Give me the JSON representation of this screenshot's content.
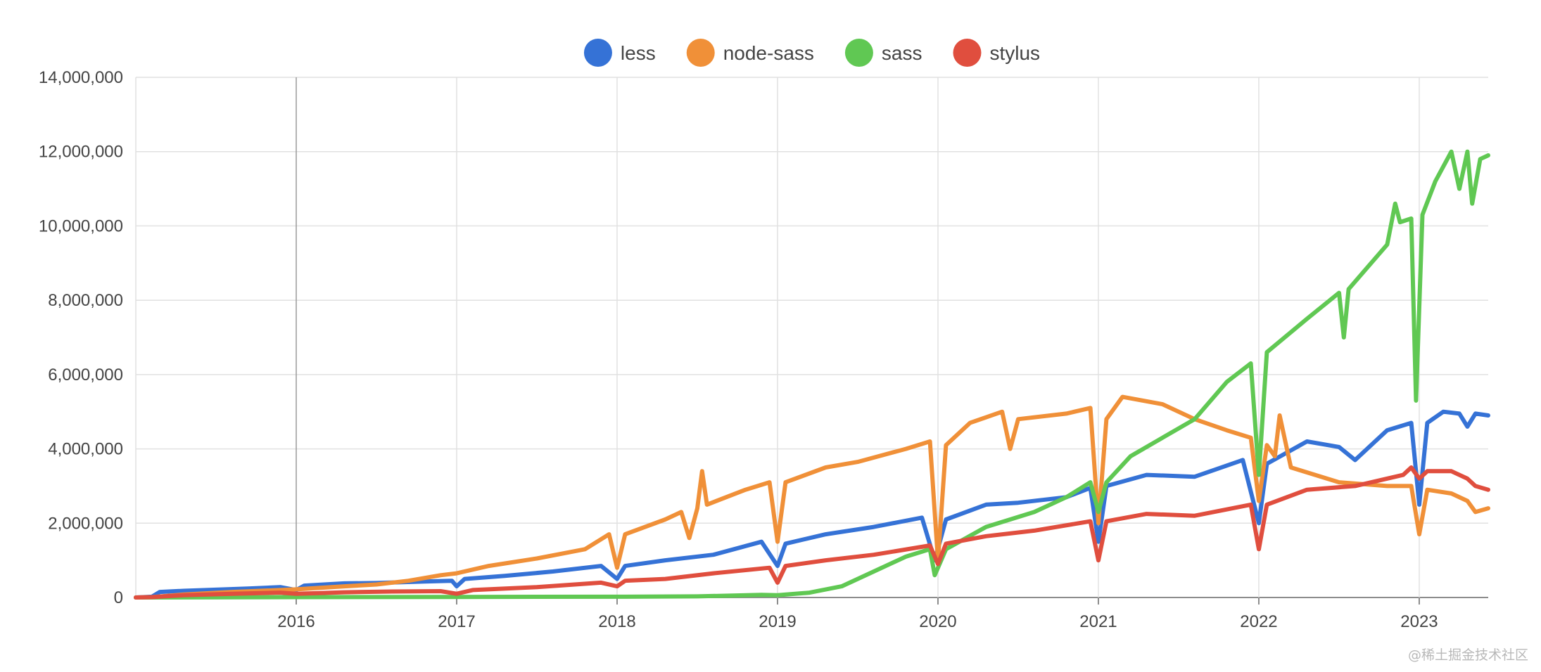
{
  "chart_data": {
    "type": "line",
    "title": "",
    "xlabel": "",
    "ylabel": "",
    "xlim": [
      2015.0,
      2023.43
    ],
    "ylim": [
      0,
      14000000
    ],
    "x_ticks": [
      2016,
      2017,
      2018,
      2019,
      2020,
      2021,
      2022,
      2023
    ],
    "x_tick_labels": [
      "2016",
      "2017",
      "2018",
      "2019",
      "2020",
      "2021",
      "2022",
      "2023"
    ],
    "y_ticks": [
      0,
      2000000,
      4000000,
      6000000,
      8000000,
      10000000,
      12000000,
      14000000
    ],
    "y_tick_labels": [
      "0",
      "2,000,000",
      "4,000,000",
      "6,000,000",
      "8,000,000",
      "10,000,000",
      "12,000,000",
      "14,000,000"
    ],
    "grid": true,
    "legend_position": "top-center",
    "series": [
      {
        "name": "less",
        "color": "#3572d6",
        "points": [
          [
            2015.0,
            0
          ],
          [
            2015.1,
            20000
          ],
          [
            2015.15,
            150000
          ],
          [
            2015.3,
            180000
          ],
          [
            2015.5,
            210000
          ],
          [
            2015.7,
            240000
          ],
          [
            2015.9,
            280000
          ],
          [
            2016.0,
            200000
          ],
          [
            2016.05,
            320000
          ],
          [
            2016.3,
            380000
          ],
          [
            2016.5,
            390000
          ],
          [
            2016.8,
            430000
          ],
          [
            2016.97,
            450000
          ],
          [
            2017.0,
            300000
          ],
          [
            2017.05,
            500000
          ],
          [
            2017.3,
            580000
          ],
          [
            2017.6,
            700000
          ],
          [
            2017.9,
            850000
          ],
          [
            2018.0,
            500000
          ],
          [
            2018.05,
            850000
          ],
          [
            2018.3,
            1000000
          ],
          [
            2018.6,
            1150000
          ],
          [
            2018.9,
            1500000
          ],
          [
            2019.0,
            850000
          ],
          [
            2019.05,
            1450000
          ],
          [
            2019.3,
            1700000
          ],
          [
            2019.6,
            1900000
          ],
          [
            2019.9,
            2150000
          ],
          [
            2019.98,
            1000000
          ],
          [
            2020.05,
            2100000
          ],
          [
            2020.3,
            2500000
          ],
          [
            2020.5,
            2550000
          ],
          [
            2020.8,
            2700000
          ],
          [
            2020.95,
            2950000
          ],
          [
            2021.0,
            1500000
          ],
          [
            2021.05,
            3000000
          ],
          [
            2021.3,
            3300000
          ],
          [
            2021.6,
            3250000
          ],
          [
            2021.9,
            3700000
          ],
          [
            2022.0,
            2000000
          ],
          [
            2022.05,
            3600000
          ],
          [
            2022.3,
            4200000
          ],
          [
            2022.5,
            4050000
          ],
          [
            2022.6,
            3700000
          ],
          [
            2022.8,
            4500000
          ],
          [
            2022.95,
            4700000
          ],
          [
            2023.0,
            2500000
          ],
          [
            2023.05,
            4700000
          ],
          [
            2023.15,
            5000000
          ],
          [
            2023.25,
            4950000
          ],
          [
            2023.3,
            4600000
          ],
          [
            2023.35,
            4950000
          ],
          [
            2023.43,
            4900000
          ]
        ]
      },
      {
        "name": "node-sass",
        "color": "#f09038",
        "points": [
          [
            2015.0,
            0
          ],
          [
            2015.1,
            10000
          ],
          [
            2015.3,
            80000
          ],
          [
            2015.6,
            150000
          ],
          [
            2015.9,
            200000
          ],
          [
            2016.0,
            220000
          ],
          [
            2016.3,
            300000
          ],
          [
            2016.5,
            350000
          ],
          [
            2016.7,
            450000
          ],
          [
            2016.9,
            600000
          ],
          [
            2017.0,
            650000
          ],
          [
            2017.2,
            850000
          ],
          [
            2017.5,
            1050000
          ],
          [
            2017.8,
            1300000
          ],
          [
            2017.95,
            1700000
          ],
          [
            2018.0,
            800000
          ],
          [
            2018.05,
            1700000
          ],
          [
            2018.3,
            2100000
          ],
          [
            2018.4,
            2300000
          ],
          [
            2018.45,
            1600000
          ],
          [
            2018.5,
            2400000
          ],
          [
            2018.53,
            3400000
          ],
          [
            2018.56,
            2500000
          ],
          [
            2018.8,
            2900000
          ],
          [
            2018.95,
            3100000
          ],
          [
            2019.0,
            1500000
          ],
          [
            2019.05,
            3100000
          ],
          [
            2019.3,
            3500000
          ],
          [
            2019.5,
            3650000
          ],
          [
            2019.8,
            4000000
          ],
          [
            2019.95,
            4200000
          ],
          [
            2020.0,
            1000000
          ],
          [
            2020.05,
            4100000
          ],
          [
            2020.2,
            4700000
          ],
          [
            2020.4,
            5000000
          ],
          [
            2020.45,
            4000000
          ],
          [
            2020.5,
            4800000
          ],
          [
            2020.8,
            4950000
          ],
          [
            2020.95,
            5100000
          ],
          [
            2021.0,
            2000000
          ],
          [
            2021.05,
            4800000
          ],
          [
            2021.15,
            5400000
          ],
          [
            2021.4,
            5200000
          ],
          [
            2021.6,
            4800000
          ],
          [
            2021.8,
            4500000
          ],
          [
            2021.95,
            4300000
          ],
          [
            2022.0,
            2600000
          ],
          [
            2022.05,
            4100000
          ],
          [
            2022.1,
            3800000
          ],
          [
            2022.13,
            4900000
          ],
          [
            2022.2,
            3500000
          ],
          [
            2022.5,
            3100000
          ],
          [
            2022.8,
            3000000
          ],
          [
            2022.95,
            3000000
          ],
          [
            2023.0,
            1700000
          ],
          [
            2023.05,
            2900000
          ],
          [
            2023.2,
            2800000
          ],
          [
            2023.3,
            2600000
          ],
          [
            2023.35,
            2300000
          ],
          [
            2023.43,
            2400000
          ]
        ]
      },
      {
        "name": "sass",
        "color": "#60c853",
        "points": [
          [
            2015.0,
            0
          ],
          [
            2016.0,
            10000
          ],
          [
            2017.0,
            15000
          ],
          [
            2018.0,
            20000
          ],
          [
            2018.5,
            30000
          ],
          [
            2018.9,
            70000
          ],
          [
            2019.0,
            60000
          ],
          [
            2019.2,
            130000
          ],
          [
            2019.4,
            300000
          ],
          [
            2019.6,
            700000
          ],
          [
            2019.8,
            1100000
          ],
          [
            2019.95,
            1300000
          ],
          [
            2019.98,
            600000
          ],
          [
            2020.05,
            1300000
          ],
          [
            2020.3,
            1900000
          ],
          [
            2020.6,
            2300000
          ],
          [
            2020.8,
            2700000
          ],
          [
            2020.95,
            3100000
          ],
          [
            2021.0,
            2300000
          ],
          [
            2021.05,
            3100000
          ],
          [
            2021.2,
            3800000
          ],
          [
            2021.4,
            4300000
          ],
          [
            2021.6,
            4800000
          ],
          [
            2021.8,
            5800000
          ],
          [
            2021.95,
            6300000
          ],
          [
            2022.0,
            3300000
          ],
          [
            2022.05,
            6600000
          ],
          [
            2022.3,
            7500000
          ],
          [
            2022.5,
            8200000
          ],
          [
            2022.53,
            7000000
          ],
          [
            2022.56,
            8300000
          ],
          [
            2022.8,
            9500000
          ],
          [
            2022.85,
            10600000
          ],
          [
            2022.88,
            10100000
          ],
          [
            2022.95,
            10200000
          ],
          [
            2022.98,
            5300000
          ],
          [
            2023.02,
            10300000
          ],
          [
            2023.1,
            11200000
          ],
          [
            2023.2,
            12000000
          ],
          [
            2023.25,
            11000000
          ],
          [
            2023.3,
            12000000
          ],
          [
            2023.33,
            10600000
          ],
          [
            2023.38,
            11800000
          ],
          [
            2023.43,
            11900000
          ]
        ]
      },
      {
        "name": "stylus",
        "color": "#e04e3e",
        "points": [
          [
            2015.0,
            0
          ],
          [
            2015.1,
            10000
          ],
          [
            2015.3,
            60000
          ],
          [
            2015.6,
            100000
          ],
          [
            2015.9,
            130000
          ],
          [
            2016.0,
            100000
          ],
          [
            2016.3,
            140000
          ],
          [
            2016.6,
            160000
          ],
          [
            2016.9,
            170000
          ],
          [
            2017.0,
            100000
          ],
          [
            2017.1,
            200000
          ],
          [
            2017.5,
            280000
          ],
          [
            2017.9,
            400000
          ],
          [
            2018.0,
            300000
          ],
          [
            2018.05,
            450000
          ],
          [
            2018.3,
            500000
          ],
          [
            2018.6,
            650000
          ],
          [
            2018.95,
            800000
          ],
          [
            2019.0,
            400000
          ],
          [
            2019.05,
            850000
          ],
          [
            2019.3,
            1000000
          ],
          [
            2019.6,
            1150000
          ],
          [
            2019.95,
            1400000
          ],
          [
            2020.0,
            900000
          ],
          [
            2020.05,
            1450000
          ],
          [
            2020.3,
            1650000
          ],
          [
            2020.6,
            1800000
          ],
          [
            2020.95,
            2050000
          ],
          [
            2021.0,
            1000000
          ],
          [
            2021.05,
            2050000
          ],
          [
            2021.3,
            2250000
          ],
          [
            2021.6,
            2200000
          ],
          [
            2021.95,
            2500000
          ],
          [
            2022.0,
            1300000
          ],
          [
            2022.05,
            2500000
          ],
          [
            2022.3,
            2900000
          ],
          [
            2022.6,
            3000000
          ],
          [
            2022.9,
            3300000
          ],
          [
            2022.95,
            3500000
          ],
          [
            2023.0,
            3200000
          ],
          [
            2023.05,
            3400000
          ],
          [
            2023.2,
            3400000
          ],
          [
            2023.3,
            3200000
          ],
          [
            2023.35,
            3000000
          ],
          [
            2023.43,
            2900000
          ]
        ]
      }
    ]
  },
  "watermark": "@稀土掘金技术社区"
}
